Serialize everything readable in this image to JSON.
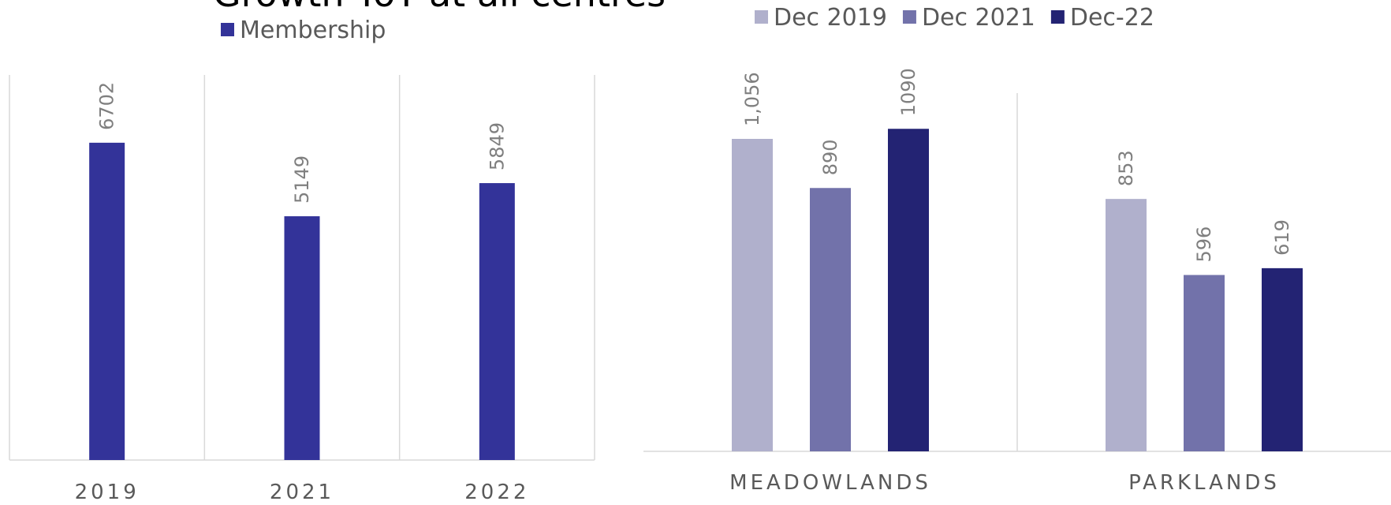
{
  "chart_data": [
    {
      "type": "bar",
      "title": "Growth YoY at all centres",
      "categories": [
        "2019",
        "2021",
        "2022"
      ],
      "series": [
        {
          "name": "Membership",
          "values": [
            6702,
            5149,
            5849
          ],
          "color": "#333399"
        }
      ],
      "data_labels": [
        "6702",
        "5149",
        "5849"
      ],
      "ylim": [
        0,
        8000
      ],
      "grid": "vertical category separators",
      "legend": "top-left"
    },
    {
      "type": "bar",
      "categories": [
        "MEADOWLANDS",
        "PARKLANDS"
      ],
      "series": [
        {
          "name": "Dec 2019",
          "values": [
            1056,
            853
          ],
          "labels": [
            "1,056",
            "853"
          ],
          "color": "#b0b0cc"
        },
        {
          "name": "Dec 2021",
          "values": [
            890,
            596
          ],
          "labels": [
            "890",
            "596"
          ],
          "color": "#7272aa"
        },
        {
          "name": "Dec-22",
          "values": [
            1090,
            619
          ],
          "labels": [
            "1090",
            "619"
          ],
          "color": "#232373"
        }
      ],
      "ylim": [
        0,
        1200
      ],
      "grid": "vertical category separators",
      "legend": "top"
    }
  ]
}
